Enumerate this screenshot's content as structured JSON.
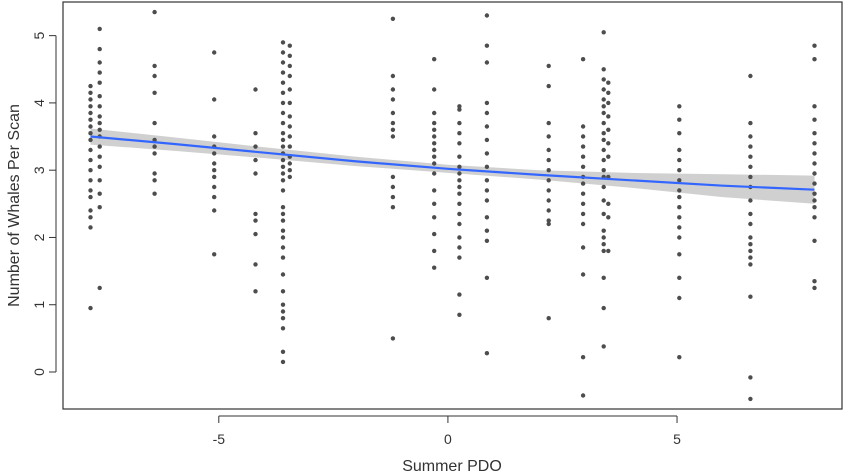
{
  "chart_data": {
    "type": "scatter",
    "title": "",
    "xlabel": "Summer PDO",
    "ylabel": "Number of Whales Per Scan",
    "xlim": [
      -8.4,
      8.6
    ],
    "ylim": [
      -0.55,
      5.5
    ],
    "x_ticks": [
      -5,
      0,
      5
    ],
    "x_tick_labels": [
      "-5",
      "0",
      "5"
    ],
    "y_ticks": [
      0,
      1,
      2,
      3,
      4,
      5
    ],
    "y_tick_labels": [
      "0",
      "1",
      "2",
      "3",
      "4",
      "5"
    ],
    "grid": false,
    "legend": "none",
    "colors": {
      "points": "#4d4d4d",
      "fit_line": "#3366ff",
      "confidence_band": "#c8c8c8"
    },
    "series": [
      {
        "type": "points",
        "groups": [
          {
            "x": -7.8,
            "y": [
              0.95,
              2.15,
              2.3,
              2.4,
              2.6,
              2.7,
              2.85,
              3.0,
              3.15,
              3.3,
              3.45,
              3.55,
              3.65,
              3.75,
              3.85,
              3.95,
              4.05,
              4.15,
              4.25
            ]
          },
          {
            "x": -7.6,
            "y": [
              1.25,
              2.45,
              2.65,
              2.85,
              3.05,
              3.2,
              3.35,
              3.5,
              3.6,
              3.7,
              3.8,
              3.95,
              4.1,
              4.3,
              4.45,
              4.6,
              4.8,
              5.1
            ]
          },
          {
            "x": -6.4,
            "y": [
              2.65,
              2.85,
              2.95,
              3.25,
              3.35,
              3.45,
              3.7,
              4.15,
              4.4,
              4.55,
              5.35
            ]
          },
          {
            "x": -5.1,
            "y": [
              1.75,
              2.4,
              2.6,
              2.75,
              2.9,
              3.0,
              3.1,
              3.25,
              3.35,
              3.5,
              4.05,
              4.75
            ]
          },
          {
            "x": -4.2,
            "y": [
              1.2,
              1.6,
              2.05,
              2.25,
              2.35,
              2.95,
              3.15,
              3.35,
              3.55,
              4.2
            ]
          },
          {
            "x": -3.6,
            "y": [
              0.15,
              0.3,
              0.65,
              0.8,
              0.9,
              1.0,
              1.2,
              1.45,
              1.7,
              1.85,
              2.0,
              2.1,
              2.25,
              2.35,
              2.45,
              2.7,
              2.85,
              2.95,
              3.05,
              3.15,
              3.25,
              3.35,
              3.45,
              3.55,
              3.7,
              3.85,
              4.0,
              4.15,
              4.3,
              4.45,
              4.6,
              4.75,
              4.9
            ]
          },
          {
            "x": -3.45,
            "y": [
              2.9,
              3.0,
              3.1,
              3.2,
              3.35,
              3.5,
              3.65,
              3.8,
              4.0,
              4.2,
              4.4,
              4.55,
              4.7,
              4.85
            ]
          },
          {
            "x": -1.2,
            "y": [
              0.5,
              2.45,
              2.6,
              2.75,
              2.9,
              3.5,
              3.6,
              3.7,
              3.85,
              4.05,
              4.2,
              4.4,
              5.25
            ]
          },
          {
            "x": -0.3,
            "y": [
              1.55,
              1.8,
              2.05,
              2.3,
              2.5,
              2.7,
              2.95,
              3.1,
              3.2,
              3.3,
              3.4,
              3.5,
              3.6,
              3.7,
              3.85,
              4.2,
              4.65
            ]
          },
          {
            "x": 0.25,
            "y": [
              0.85,
              1.15,
              1.7,
              1.85,
              2.0,
              2.2,
              2.35,
              2.5,
              2.65,
              2.75,
              2.85,
              2.95,
              3.05,
              3.2,
              3.4,
              3.55,
              3.7,
              3.9,
              3.95
            ]
          },
          {
            "x": 0.85,
            "y": [
              0.28,
              1.4,
              1.95,
              2.1,
              2.3,
              2.55,
              2.7,
              2.85,
              3.05,
              3.25,
              3.45,
              3.65,
              3.85,
              4.0,
              4.6,
              4.85,
              5.3
            ]
          },
          {
            "x": 2.2,
            "y": [
              0.8,
              2.2,
              2.25,
              2.4,
              2.55,
              2.7,
              2.85,
              3.0,
              3.15,
              3.3,
              3.5,
              3.7,
              4.25,
              4.55
            ]
          },
          {
            "x": 2.95,
            "y": [
              -0.35,
              0.22,
              1.45,
              1.85,
              2.2,
              2.35,
              2.5,
              2.65,
              2.8,
              2.9,
              3.05,
              3.2,
              3.35,
              3.5,
              3.65,
              4.65
            ]
          },
          {
            "x": 3.4,
            "y": [
              0.38,
              0.95,
              1.4,
              1.8,
              1.9,
              2.0,
              2.1,
              2.35,
              2.55,
              2.75,
              2.9,
              3.0,
              3.15,
              3.3,
              3.45,
              3.55,
              3.7,
              3.85,
              3.95,
              4.05,
              4.2,
              4.35,
              4.5,
              5.05
            ]
          },
          {
            "x": 3.5,
            "y": [
              1.8,
              2.3,
              2.5,
              2.9,
              3.2,
              3.4,
              3.6,
              3.8,
              4.0,
              4.15,
              4.3
            ]
          },
          {
            "x": 5.05,
            "y": [
              0.22,
              1.1,
              1.4,
              1.75,
              2.0,
              2.15,
              2.3,
              2.45,
              2.6,
              2.7,
              2.85,
              3.0,
              3.15,
              3.3,
              3.55,
              3.75,
              3.95
            ]
          },
          {
            "x": 6.6,
            "y": [
              -0.4,
              -0.08,
              1.12,
              1.6,
              1.7,
              1.8,
              1.9,
              2.0,
              2.2,
              2.35,
              2.55,
              2.75,
              2.9,
              3.05,
              3.2,
              3.35,
              3.5,
              3.7,
              4.4
            ]
          },
          {
            "x": 8.0,
            "y": [
              1.25,
              1.35,
              1.95,
              2.3,
              2.45,
              2.55,
              2.65,
              2.8,
              2.95,
              3.1,
              3.25,
              3.4,
              3.55,
              3.75,
              3.95,
              4.65,
              4.85
            ]
          }
        ]
      },
      {
        "type": "fit_line",
        "x": [
          -7.8,
          -6,
          -4,
          -2,
          0,
          2,
          4,
          6,
          8
        ],
        "y": [
          3.5,
          3.39,
          3.26,
          3.13,
          3.02,
          2.93,
          2.85,
          2.77,
          2.71
        ],
        "lower": [
          3.38,
          3.29,
          3.18,
          3.06,
          2.96,
          2.86,
          2.74,
          2.6,
          2.5
        ],
        "upper": [
          3.62,
          3.49,
          3.34,
          3.2,
          3.08,
          3.0,
          2.96,
          2.94,
          2.92
        ]
      }
    ]
  }
}
